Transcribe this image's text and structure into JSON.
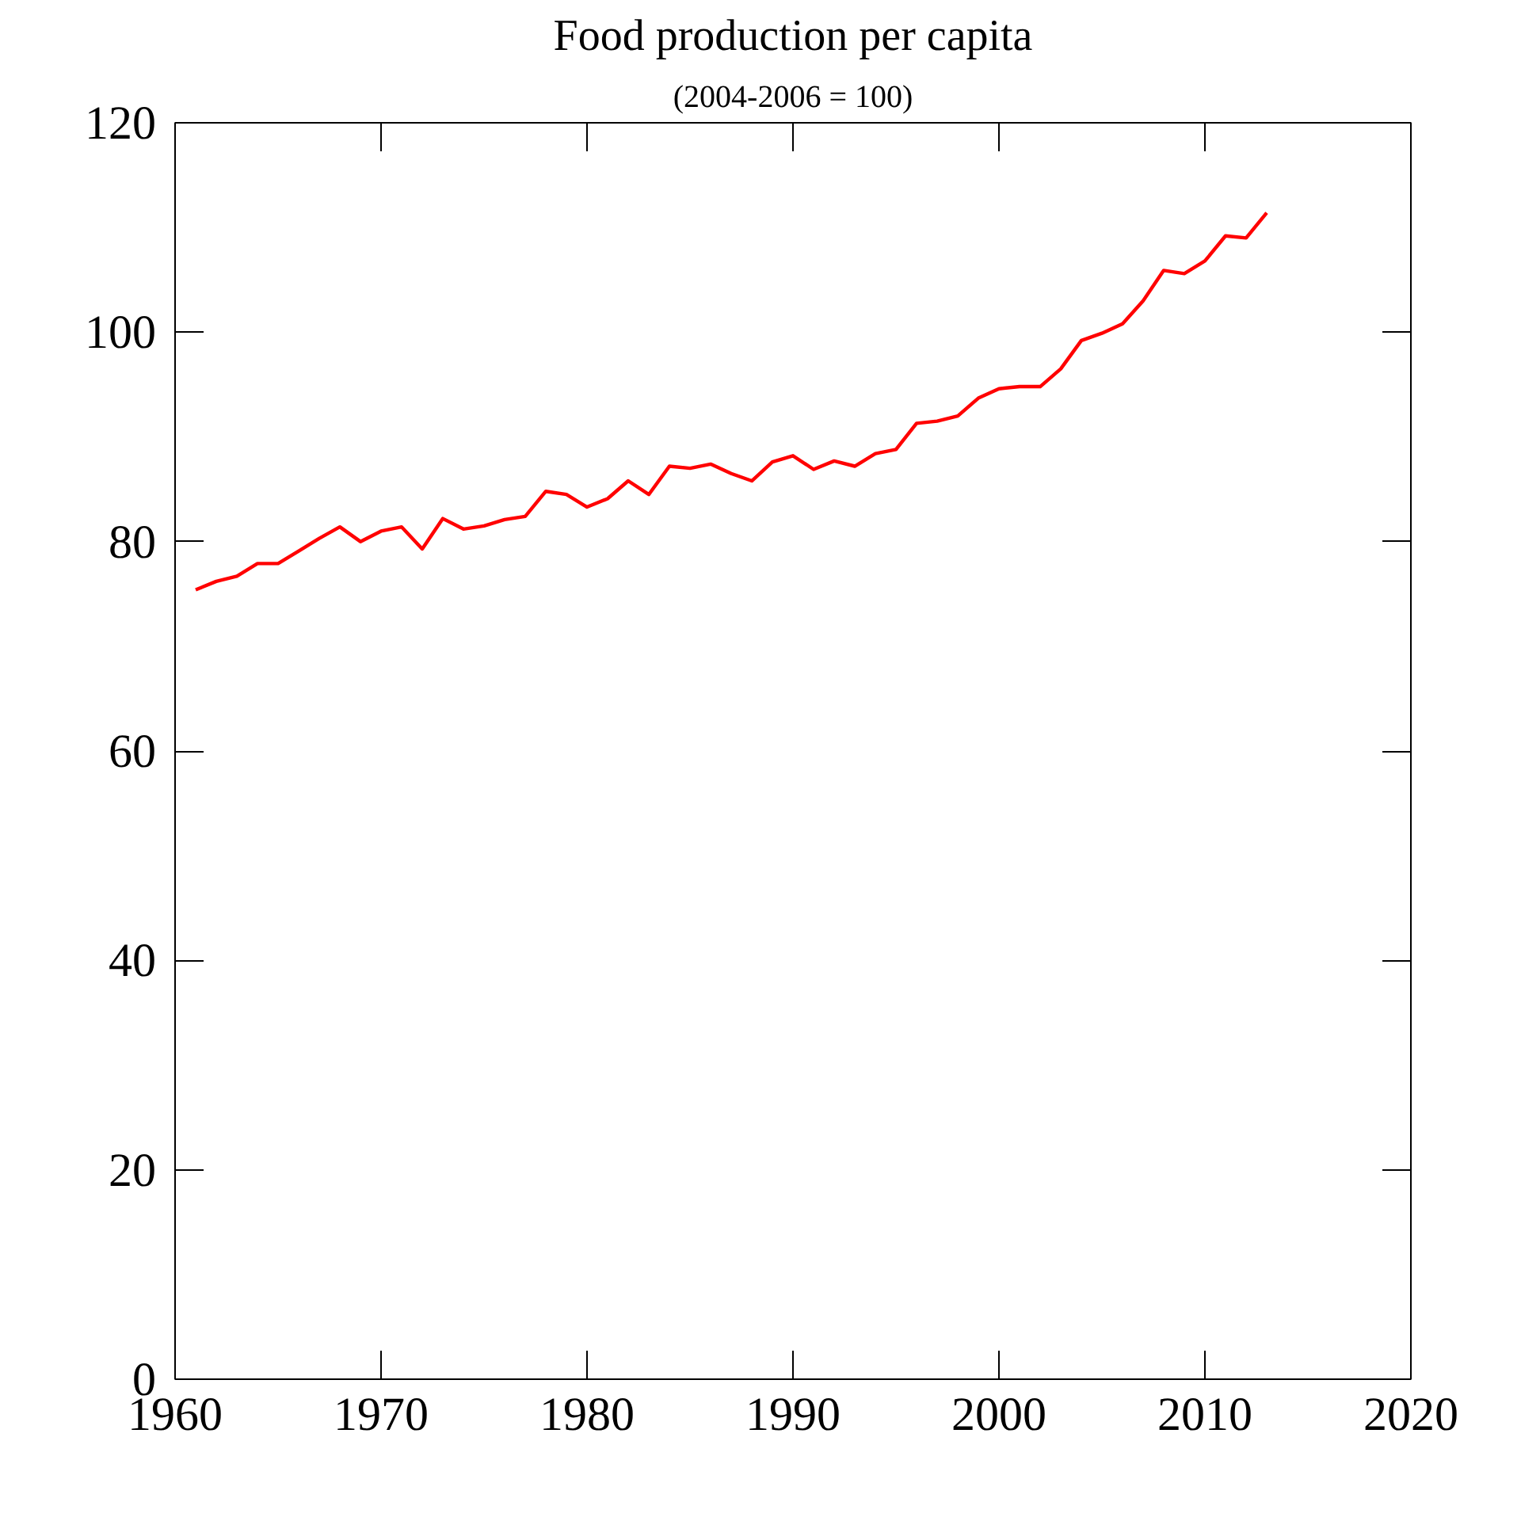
{
  "chart_data": {
    "type": "line",
    "title": "Food production per capita",
    "subtitle": "(2004-2006 = 100)",
    "x": [
      1961,
      1962,
      1963,
      1964,
      1965,
      1966,
      1967,
      1968,
      1969,
      1970,
      1971,
      1972,
      1973,
      1974,
      1975,
      1976,
      1977,
      1978,
      1979,
      1980,
      1981,
      1982,
      1983,
      1984,
      1985,
      1986,
      1987,
      1988,
      1989,
      1990,
      1991,
      1992,
      1993,
      1994,
      1995,
      1996,
      1997,
      1998,
      1999,
      2000,
      2001,
      2002,
      2003,
      2004,
      2005,
      2006,
      2007,
      2008,
      2009,
      2010,
      2011,
      2012,
      2013
    ],
    "series": [
      {
        "color": "#ff0000",
        "values": [
          75.4,
          76.2,
          76.7,
          77.9,
          77.9,
          79.1,
          80.3,
          81.4,
          80.0,
          81.0,
          81.4,
          79.3,
          82.2,
          81.2,
          81.5,
          82.1,
          82.4,
          84.8,
          84.5,
          83.3,
          84.1,
          85.8,
          84.5,
          87.2,
          87.0,
          87.4,
          86.5,
          85.8,
          87.6,
          88.2,
          86.9,
          87.7,
          87.2,
          88.4,
          88.8,
          91.3,
          91.5,
          92.0,
          93.7,
          94.6,
          94.8,
          94.8,
          96.5,
          99.2,
          99.9,
          100.8,
          103.0,
          105.9,
          105.6,
          106.8,
          109.2,
          109.0,
          111.4
        ]
      }
    ],
    "xlim": [
      1960,
      2020
    ],
    "ylim": [
      0,
      120
    ],
    "xticks": [
      1960,
      1970,
      1980,
      1990,
      2000,
      2010,
      2020
    ],
    "yticks": [
      0,
      20,
      40,
      60,
      80,
      100,
      120
    ],
    "marker": "none",
    "line_style": "solid"
  }
}
